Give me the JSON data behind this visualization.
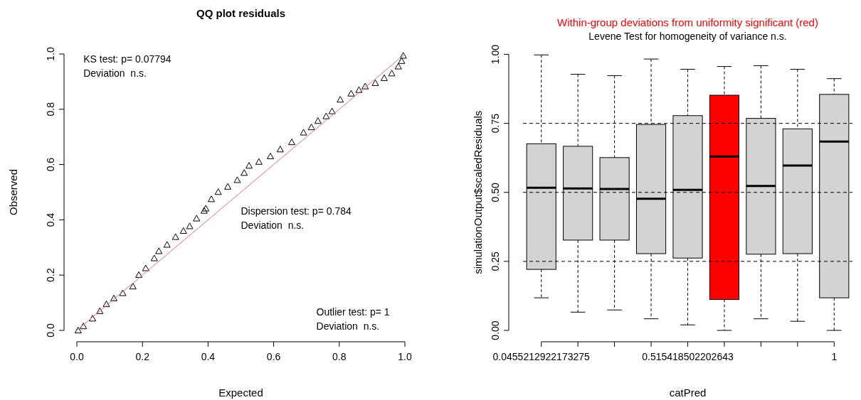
{
  "chart_data": [
    {
      "type": "scatter",
      "title": "QQ plot residuals",
      "xlabel": "Expected",
      "ylabel": "Observed",
      "xlim": [
        0,
        1
      ],
      "ylim": [
        0,
        1
      ],
      "xticks": [
        {
          "value": 0,
          "label": "0.0"
        },
        {
          "value": 0.2,
          "label": "0.2"
        },
        {
          "value": 0.4,
          "label": "0.4"
        },
        {
          "value": 0.6,
          "label": "0.6"
        },
        {
          "value": 0.8,
          "label": "0.8"
        },
        {
          "value": 1,
          "label": "1.0"
        }
      ],
      "yticks": [
        {
          "value": 0,
          "label": "0.0"
        },
        {
          "value": 0.2,
          "label": "0.2"
        },
        {
          "value": 0.4,
          "label": "0.4"
        },
        {
          "value": 0.6,
          "label": "0.6"
        },
        {
          "value": 0.8,
          "label": "0.8"
        },
        {
          "value": 1,
          "label": "1.0"
        }
      ],
      "series": [
        {
          "type": "scatter",
          "color": "#000000",
          "marker": "triangle",
          "x": [
            0.004,
            0.02,
            0.048,
            0.07,
            0.09,
            0.113,
            0.14,
            0.171,
            0.189,
            0.21,
            0.236,
            0.25,
            0.275,
            0.301,
            0.325,
            0.344,
            0.365,
            0.388,
            0.393,
            0.41,
            0.431,
            0.46,
            0.489,
            0.51,
            0.525,
            0.555,
            0.59,
            0.62,
            0.655,
            0.691,
            0.715,
            0.735,
            0.76,
            0.778,
            0.803,
            0.836,
            0.86,
            0.879,
            0.91,
            0.937,
            0.96,
            0.98,
            0.99,
            0.995
          ],
          "values": [
            0.0,
            0.015,
            0.043,
            0.07,
            0.095,
            0.116,
            0.135,
            0.159,
            0.201,
            0.225,
            0.261,
            0.287,
            0.31,
            0.338,
            0.36,
            0.377,
            0.405,
            0.433,
            0.441,
            0.475,
            0.501,
            0.52,
            0.544,
            0.57,
            0.596,
            0.61,
            0.63,
            0.655,
            0.681,
            0.716,
            0.735,
            0.758,
            0.775,
            0.793,
            0.835,
            0.857,
            0.87,
            0.883,
            0.895,
            0.913,
            0.93,
            0.955,
            0.975,
            0.994
          ]
        },
        {
          "type": "line",
          "color": "#e8707c",
          "x": [
            0,
            1
          ],
          "values": [
            0,
            1
          ]
        }
      ],
      "annotations": [
        "KS test: p= 0.07794\nDeviation  n.s.",
        "Dispersion test: p= 0.784\nDeviation  n.s.",
        "Outlier test: p= 1\nDeviation  n.s."
      ]
    },
    {
      "type": "box",
      "title": "Within-group deviations from uniformity significant (red)",
      "subtitle": "Levene Test for homogeneity of variance n.s.",
      "xlabel": "catPred",
      "ylabel": "simulationOutput$scaledResiduals",
      "categories": [
        "0.0455212922173275",
        null,
        null,
        null,
        "0.515418502202643",
        null,
        null,
        null,
        "1"
      ],
      "colors": [
        "#d3d3d3",
        "#d3d3d3",
        "#d3d3d3",
        "#d3d3d3",
        "#d3d3d3",
        "#ff0000",
        "#d3d3d3",
        "#d3d3d3",
        "#d3d3d3"
      ],
      "boxes": [
        {
          "low": 0.118,
          "q1": 0.221,
          "median": 0.517,
          "q3": 0.676,
          "high": 0.998
        },
        {
          "low": 0.066,
          "q1": 0.327,
          "median": 0.514,
          "q3": 0.667,
          "high": 0.928
        },
        {
          "low": 0.074,
          "q1": 0.327,
          "median": 0.512,
          "q3": 0.626,
          "high": 0.923
        },
        {
          "low": 0.042,
          "q1": 0.278,
          "median": 0.477,
          "q3": 0.746,
          "high": 0.983
        },
        {
          "low": 0.02,
          "q1": 0.262,
          "median": 0.509,
          "q3": 0.778,
          "high": 0.946
        },
        {
          "low": 0.0,
          "q1": 0.112,
          "median": 0.63,
          "q3": 0.852,
          "high": 0.956
        },
        {
          "low": 0.042,
          "q1": 0.276,
          "median": 0.523,
          "q3": 0.768,
          "high": 0.959
        },
        {
          "low": 0.033,
          "q1": 0.278,
          "median": 0.597,
          "q3": 0.73,
          "high": 0.946
        },
        {
          "low": 0.0,
          "q1": 0.118,
          "median": 0.684,
          "q3": 0.855,
          "high": 0.912
        }
      ],
      "ylim": [
        0,
        1
      ],
      "yticks": [
        {
          "value": 0,
          "label": "0.00"
        },
        {
          "value": 0.25,
          "label": "0.25"
        },
        {
          "value": 0.5,
          "label": "0.50"
        },
        {
          "value": 0.75,
          "label": "0.75"
        },
        {
          "value": 1,
          "label": "1.00"
        }
      ],
      "ref_lines": [
        {
          "axis": "y",
          "value": 0.25,
          "line_style": "dashed",
          "color": "#000000"
        },
        {
          "axis": "y",
          "value": 0.5,
          "line_style": "dashed",
          "color": "#000000"
        },
        {
          "axis": "y",
          "value": 0.75,
          "line_style": "dashed",
          "color": "#000000"
        }
      ]
    }
  ]
}
